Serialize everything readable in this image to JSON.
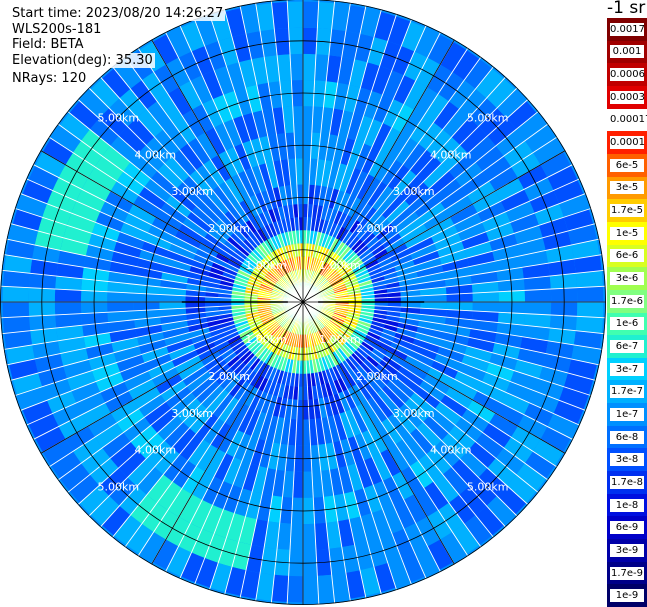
{
  "info": {
    "start_time": "Start time: 2023/08/20 14:26:27",
    "instrument": "WLS200s-181",
    "field": "Field: BETA",
    "elevation": "Elevation(deg): 35.30",
    "nrays": "NRays: 120"
  },
  "colorbar": {
    "unit": "-1 sr",
    "entries": [
      {
        "label": "0.0017",
        "color": "#800000"
      },
      {
        "label": "0.001",
        "color": "#a00000"
      },
      {
        "label": "0.0006",
        "color": "#c00000"
      },
      {
        "label": "0.0003",
        "color": "#e00000"
      },
      {
        "label": "0.00017",
        "color": "#ffffff"
      },
      {
        "label": "0.0001",
        "color": "#ff2000"
      },
      {
        "label": "6e-5",
        "color": "#ff6000"
      },
      {
        "label": "3e-5",
        "color": "#ff9a00"
      },
      {
        "label": "1.7e-5",
        "color": "#ffcc00"
      },
      {
        "label": "1e-5",
        "color": "#ffff00"
      },
      {
        "label": "6e-6",
        "color": "#d8ff20"
      },
      {
        "label": "3e-6",
        "color": "#a0ff50"
      },
      {
        "label": "1.7e-6",
        "color": "#80ff80"
      },
      {
        "label": "1e-6",
        "color": "#40ffb0"
      },
      {
        "label": "6e-7",
        "color": "#20f0d0"
      },
      {
        "label": "3e-7",
        "color": "#00d0ff"
      },
      {
        "label": "1.7e-7",
        "color": "#00b0ff"
      },
      {
        "label": "1e-7",
        "color": "#0090ff"
      },
      {
        "label": "6e-8",
        "color": "#0070ff"
      },
      {
        "label": "3e-8",
        "color": "#0050ff"
      },
      {
        "label": "1.7e-8",
        "color": "#0030f0"
      },
      {
        "label": "1e-8",
        "color": "#0010e0"
      },
      {
        "label": "6e-9",
        "color": "#0000c8"
      },
      {
        "label": "3e-9",
        "color": "#0000a8"
      },
      {
        "label": "1.7e-9",
        "color": "#000088"
      },
      {
        "label": "1e-9",
        "color": "#000068"
      }
    ]
  },
  "chart_data": {
    "type": "heatmap",
    "projection": "polar PPI",
    "field": "BETA",
    "unit": "-1 sr",
    "scale": "log",
    "nrays": 120,
    "range_rings_km": [
      1,
      2,
      3,
      4,
      5
    ],
    "range_ring_labels": [
      "1.00km",
      "2.00km",
      "3.00km",
      "4.00km",
      "5.00km"
    ],
    "max_range_km": 5.8,
    "range_bins": [
      {
        "range_km": 0.25,
        "beta": 1.7e-06
      },
      {
        "range_km": 0.5,
        "beta": 6e-06
      },
      {
        "range_km": 0.75,
        "beta": 3e-05
      },
      {
        "range_km": 1.0,
        "beta": 1e-05
      },
      {
        "range_km": 1.25,
        "beta": 1e-06
      },
      {
        "range_km": 1.5,
        "beta": 3e-08
      },
      {
        "range_km": 1.75,
        "beta": 3e-08
      },
      {
        "range_km": 2.0,
        "beta": 6e-08
      },
      {
        "range_km": 2.5,
        "beta": 1e-07
      },
      {
        "range_km": 3.0,
        "beta": 1e-07
      },
      {
        "range_km": 3.5,
        "beta": 1e-07
      },
      {
        "range_km": 4.0,
        "beta": 1.7e-07
      },
      {
        "range_km": 4.5,
        "beta": 1e-07
      },
      {
        "range_km": 5.0,
        "beta": 1e-07
      },
      {
        "range_km": 5.5,
        "beta": 1e-07
      }
    ],
    "features": [
      {
        "azimuth_deg": 295,
        "range_km": 4.7,
        "beta": 6e-07
      },
      {
        "azimuth_deg": 205,
        "range_km": 4.8,
        "beta": 6e-07
      }
    ]
  }
}
